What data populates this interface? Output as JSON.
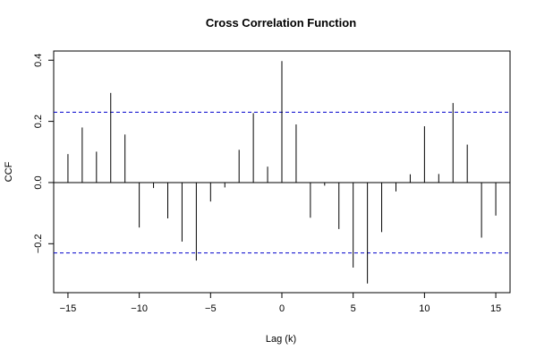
{
  "chart_data": {
    "type": "bar",
    "title": "Cross Correlation Function",
    "xlabel": "Lag (k)",
    "ylabel": "CCF",
    "xlim": [
      -16,
      16
    ],
    "ylim": [
      -0.36,
      0.43
    ],
    "x_ticks": [
      -15,
      -10,
      -5,
      0,
      5,
      10,
      15
    ],
    "x_tick_labels": [
      "−15",
      "−10",
      "−5",
      "0",
      "5",
      "10",
      "15"
    ],
    "y_ticks": [
      -0.2,
      0.0,
      0.2,
      0.4
    ],
    "y_tick_labels": [
      "−0.2",
      "0.0",
      "0.2",
      "0.4"
    ],
    "lags": [
      -15,
      -14,
      -13,
      -12,
      -11,
      -10,
      -9,
      -8,
      -7,
      -6,
      -5,
      -4,
      -3,
      -2,
      -1,
      0,
      1,
      2,
      3,
      4,
      5,
      6,
      7,
      8,
      9,
      10,
      11,
      12,
      13,
      14,
      15
    ],
    "values": [
      0.093,
      0.18,
      0.101,
      0.293,
      0.157,
      -0.147,
      -0.018,
      -0.117,
      -0.193,
      -0.255,
      -0.062,
      -0.016,
      0.107,
      0.227,
      0.052,
      0.397,
      0.19,
      -0.115,
      -0.01,
      -0.152,
      -0.278,
      -0.33,
      -0.162,
      -0.029,
      0.027,
      0.184,
      0.028,
      0.26,
      0.124,
      -0.18,
      -0.108
    ],
    "confidence_bands": [
      0.23,
      -0.23
    ],
    "zero_line": true,
    "grid": false,
    "colors": {
      "bars": "#000000",
      "bands": "#0000cc",
      "axes": "#000000"
    }
  }
}
